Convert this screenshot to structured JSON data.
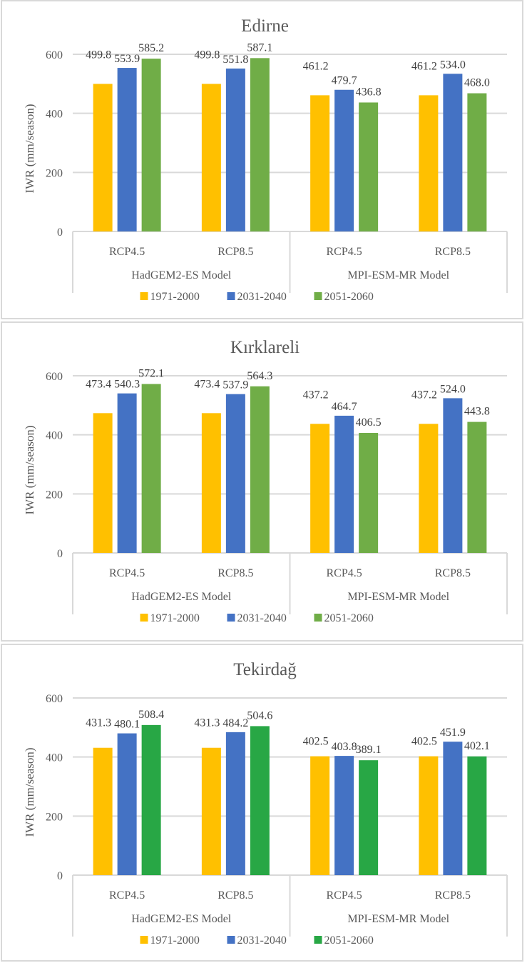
{
  "chart_data": [
    {
      "type": "bar",
      "title": "Edirne",
      "ylabel": "IWR (mm/season)",
      "xlabel": "",
      "ylim": [
        0,
        600
      ],
      "yticks": [
        0,
        200,
        400,
        600
      ],
      "grid": true,
      "legend_position": "bottom",
      "categories": [
        "RCP4.5",
        "RCP8.5",
        "RCP4.5",
        "RCP8.5"
      ],
      "groups": [
        {
          "label": "HadGEM2-ES Model",
          "span": [
            0,
            1
          ]
        },
        {
          "label": "MPI-ESM-MR Model",
          "span": [
            2,
            3
          ]
        }
      ],
      "series": [
        {
          "name": "1971-2000",
          "color": "#FFC000",
          "values": [
            499.8,
            499.8,
            461.2,
            461.2
          ]
        },
        {
          "name": "2031-2040",
          "color": "#4472C4",
          "values": [
            553.9,
            551.8,
            479.7,
            534.0
          ]
        },
        {
          "name": "2051-2060",
          "color": "#70AD47",
          "values": [
            585.2,
            587.1,
            436.8,
            468.0
          ]
        }
      ]
    },
    {
      "type": "bar",
      "title": "Kırklareli",
      "ylabel": "IWR (mm/season)",
      "xlabel": "",
      "ylim": [
        0,
        600
      ],
      "yticks": [
        0,
        200,
        400,
        600
      ],
      "grid": true,
      "legend_position": "bottom",
      "categories": [
        "RCP4.5",
        "RCP8.5",
        "RCP4.5",
        "RCP8.5"
      ],
      "groups": [
        {
          "label": "HadGEM2-ES Model",
          "span": [
            0,
            1
          ]
        },
        {
          "label": "MPI-ESM-MR Model",
          "span": [
            2,
            3
          ]
        }
      ],
      "series": [
        {
          "name": "1971-2000",
          "color": "#FFC000",
          "values": [
            473.4,
            473.4,
            437.2,
            437.2
          ]
        },
        {
          "name": "2031-2040",
          "color": "#4472C4",
          "values": [
            540.3,
            537.9,
            464.7,
            524.0
          ]
        },
        {
          "name": "2051-2060",
          "color": "#70AD47",
          "values": [
            572.1,
            564.3,
            406.5,
            443.8
          ]
        }
      ]
    },
    {
      "type": "bar",
      "title": "Tekirdağ",
      "ylabel": "IWR (mm/season)",
      "xlabel": "",
      "ylim": [
        0,
        600
      ],
      "yticks": [
        0,
        200,
        400,
        600
      ],
      "grid": true,
      "legend_position": "bottom",
      "categories": [
        "RCP4.5",
        "RCP8.5",
        "RCP4.5",
        "RCP8.5"
      ],
      "groups": [
        {
          "label": "HadGEM2-ES Model",
          "span": [
            0,
            1
          ]
        },
        {
          "label": "MPI-ESM-MR Model",
          "span": [
            2,
            3
          ]
        }
      ],
      "series": [
        {
          "name": "1971-2000",
          "color": "#FFC000",
          "values": [
            431.3,
            431.3,
            402.5,
            402.5
          ]
        },
        {
          "name": "2031-2040",
          "color": "#4472C4",
          "values": [
            480.1,
            484.2,
            403.8,
            451.9
          ]
        },
        {
          "name": "2051-2060",
          "color": "#28A745",
          "values": [
            508.4,
            504.6,
            389.1,
            402.1
          ]
        }
      ]
    }
  ]
}
